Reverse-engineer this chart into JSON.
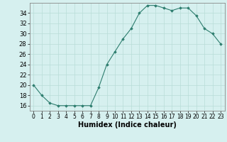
{
  "x": [
    0,
    1,
    2,
    3,
    4,
    5,
    6,
    7,
    8,
    9,
    10,
    11,
    12,
    13,
    14,
    15,
    16,
    17,
    18,
    19,
    20,
    21,
    22,
    23
  ],
  "y": [
    20,
    18,
    16.5,
    16,
    16,
    16,
    16,
    16,
    19.5,
    24,
    26.5,
    29,
    31,
    34,
    35.5,
    35.5,
    35,
    34.5,
    35,
    35,
    33.5,
    31,
    30,
    28
  ],
  "line_color": "#2d7d6e",
  "marker_color": "#2d7d6e",
  "bg_color": "#d6f0ef",
  "grid_color": "#b8ddd8",
  "xlabel": "Humidex (Indice chaleur)",
  "xlabel_fontsize": 7,
  "tick_fontsize": 6,
  "xlim": [
    -0.5,
    23.5
  ],
  "ylim": [
    15,
    36
  ],
  "yticks": [
    16,
    18,
    20,
    22,
    24,
    26,
    28,
    30,
    32,
    34
  ],
  "xticks": [
    0,
    1,
    2,
    3,
    4,
    5,
    6,
    7,
    8,
    9,
    10,
    11,
    12,
    13,
    14,
    15,
    16,
    17,
    18,
    19,
    20,
    21,
    22,
    23
  ]
}
